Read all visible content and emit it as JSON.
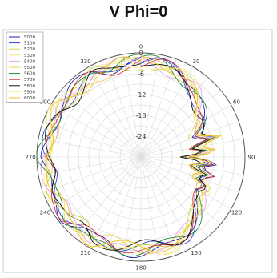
{
  "chart_data": {
    "type": "polar-line",
    "title": "V Phi=0",
    "angle_ticks": [
      0,
      30,
      60,
      90,
      120,
      150,
      180,
      210,
      240,
      270,
      300,
      330
    ],
    "radial_ticks": [
      0,
      -6,
      -12,
      -18,
      -24
    ],
    "radial_range": [
      -30,
      0
    ],
    "angle_grid_step_deg": 10,
    "radial_grid_step": 3,
    "legend_placement": "top-left",
    "series": [
      {
        "name": "5000",
        "color": "#1f1fb0"
      },
      {
        "name": "5100",
        "color": "#2a45e0"
      },
      {
        "name": "5200",
        "color": "#cfd43a"
      },
      {
        "name": "5300",
        "color": "#f2e67a"
      },
      {
        "name": "5400",
        "color": "#e0a0f0"
      },
      {
        "name": "5500",
        "color": "#f3d05a"
      },
      {
        "name": "5600",
        "color": "#1e8a35"
      },
      {
        "name": "5700",
        "color": "#d8303a"
      },
      {
        "name": "5800",
        "color": "#111111"
      },
      {
        "name": "5900",
        "color": "#f5ef9a"
      },
      {
        "name": "6000",
        "color": "#f0c020"
      }
    ],
    "base_pattern": [
      [
        0,
        -2
      ],
      [
        10,
        -2
      ],
      [
        20,
        -3
      ],
      [
        30,
        -4
      ],
      [
        40,
        -5
      ],
      [
        50,
        -8
      ],
      [
        60,
        -10
      ],
      [
        70,
        -13
      ],
      [
        75,
        -8
      ],
      [
        80,
        -15
      ],
      [
        85,
        -9
      ],
      [
        90,
        -16
      ],
      [
        95,
        -9
      ],
      [
        100,
        -15
      ],
      [
        105,
        -10
      ],
      [
        110,
        -13
      ],
      [
        115,
        -9
      ],
      [
        120,
        -10
      ],
      [
        130,
        -8
      ],
      [
        140,
        -6
      ],
      [
        150,
        -4
      ],
      [
        160,
        -3
      ],
      [
        170,
        -3
      ],
      [
        180,
        -3
      ],
      [
        190,
        -3
      ],
      [
        200,
        -3
      ],
      [
        210,
        -2
      ],
      [
        220,
        -3
      ],
      [
        230,
        -2
      ],
      [
        240,
        -3
      ],
      [
        250,
        -2
      ],
      [
        260,
        -3
      ],
      [
        270,
        -2
      ],
      [
        280,
        -3
      ],
      [
        290,
        -3
      ],
      [
        300,
        -2
      ],
      [
        310,
        -3
      ],
      [
        320,
        -3
      ],
      [
        330,
        -2
      ],
      [
        340,
        -3
      ],
      [
        350,
        -2
      ]
    ]
  }
}
